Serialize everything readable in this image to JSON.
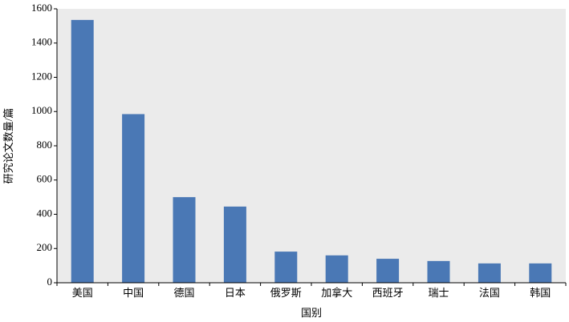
{
  "chart_data": {
    "type": "bar",
    "y_label": "研究论文数量/篇",
    "x_label": "国别",
    "categories": [
      "美国",
      "中国",
      "德国",
      "日本",
      "俄罗斯",
      "加拿大",
      "西班牙",
      "瑞士",
      "法国",
      "韩国"
    ],
    "values": [
      1535,
      985,
      500,
      445,
      182,
      160,
      140,
      127,
      113,
      113
    ],
    "color": "#4a78b5",
    "ylim": [
      0,
      1600
    ],
    "yticks": [
      0,
      200,
      400,
      600,
      800,
      1000,
      1200,
      1400,
      1600
    ],
    "grid": false
  }
}
